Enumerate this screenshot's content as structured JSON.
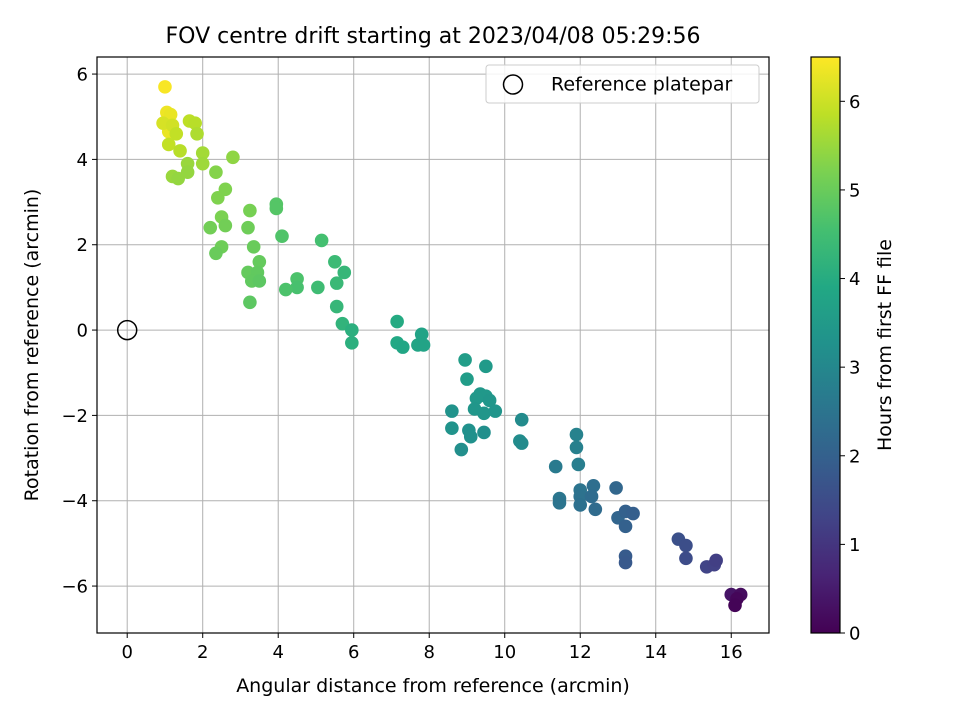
{
  "chart_data": {
    "type": "scatter",
    "title": "FOV centre drift starting at 2023/04/08 05:29:56",
    "xlabel": "Angular distance from reference (arcmin)",
    "ylabel": "Rotation from reference (arcmin)",
    "xlim": [
      -0.8,
      17.0
    ],
    "ylim": [
      -7.1,
      6.4
    ],
    "xticks": [
      0,
      2,
      4,
      6,
      8,
      10,
      12,
      14,
      16
    ],
    "yticks": [
      -6,
      -4,
      -2,
      0,
      2,
      4,
      6
    ],
    "grid": true,
    "legend": {
      "placement": "top-right",
      "entries": [
        "Reference platepar"
      ]
    },
    "reference_point": {
      "x": 0,
      "y": 0,
      "label": "Reference platepar"
    },
    "colorbar": {
      "label": "Hours from first FF file",
      "colormap": "viridis",
      "range": [
        0,
        6.5
      ],
      "ticks": [
        0,
        1,
        2,
        3,
        4,
        5,
        6
      ]
    },
    "series": [
      {
        "points": [
          [
            1.0,
            5.7,
            6.45
          ],
          [
            1.05,
            5.1,
            6.35
          ],
          [
            1.15,
            5.05,
            6.3
          ],
          [
            1.1,
            4.65,
            6.3
          ],
          [
            0.95,
            4.85,
            6.1
          ],
          [
            1.2,
            4.8,
            6.05
          ],
          [
            1.3,
            4.6,
            5.9
          ],
          [
            1.1,
            4.35,
            5.9
          ],
          [
            1.4,
            4.2,
            5.8
          ],
          [
            1.65,
            4.9,
            5.85
          ],
          [
            1.8,
            4.85,
            5.8
          ],
          [
            1.85,
            4.6,
            5.7
          ],
          [
            2.0,
            4.15,
            5.6
          ],
          [
            2.0,
            3.9,
            5.55
          ],
          [
            1.6,
            3.9,
            5.5
          ],
          [
            1.6,
            3.7,
            5.45
          ],
          [
            1.2,
            3.6,
            5.5
          ],
          [
            1.35,
            3.55,
            5.45
          ],
          [
            2.8,
            4.05,
            5.4
          ],
          [
            2.35,
            3.7,
            5.3
          ],
          [
            2.6,
            3.3,
            5.25
          ],
          [
            2.4,
            3.1,
            5.25
          ],
          [
            3.25,
            2.8,
            5.15
          ],
          [
            2.5,
            2.65,
            5.2
          ],
          [
            2.6,
            2.45,
            5.1
          ],
          [
            2.2,
            2.4,
            5.1
          ],
          [
            3.2,
            2.4,
            5.05
          ],
          [
            2.5,
            1.95,
            5.05
          ],
          [
            2.35,
            1.8,
            5.0
          ],
          [
            3.35,
            1.95,
            5.0
          ],
          [
            3.5,
            1.6,
            4.95
          ],
          [
            3.2,
            1.35,
            4.95
          ],
          [
            3.45,
            1.35,
            4.9
          ],
          [
            3.3,
            1.15,
            4.9
          ],
          [
            3.5,
            1.15,
            4.85
          ],
          [
            3.25,
            0.65,
            4.85
          ],
          [
            3.95,
            2.95,
            4.75
          ],
          [
            3.95,
            2.85,
            4.75
          ],
          [
            4.1,
            2.2,
            4.7
          ],
          [
            4.5,
            1.2,
            4.65
          ],
          [
            4.5,
            1.0,
            4.6
          ],
          [
            4.2,
            0.95,
            4.65
          ],
          [
            5.15,
            2.1,
            4.55
          ],
          [
            5.5,
            1.6,
            4.4
          ],
          [
            5.05,
            1.0,
            4.45
          ],
          [
            5.55,
            1.1,
            4.35
          ],
          [
            5.75,
            1.35,
            4.3
          ],
          [
            5.55,
            0.55,
            4.3
          ],
          [
            5.7,
            0.15,
            4.2
          ],
          [
            5.95,
            0.0,
            4.1
          ],
          [
            5.95,
            -0.3,
            4.1
          ],
          [
            7.15,
            0.2,
            3.95
          ],
          [
            7.15,
            -0.3,
            3.9
          ],
          [
            7.3,
            -0.4,
            3.85
          ],
          [
            7.7,
            -0.35,
            3.8
          ],
          [
            7.8,
            -0.1,
            3.75
          ],
          [
            7.85,
            -0.35,
            3.75
          ],
          [
            8.95,
            -0.7,
            3.6
          ],
          [
            9.0,
            -1.15,
            3.55
          ],
          [
            9.5,
            -0.85,
            3.5
          ],
          [
            9.35,
            -1.5,
            3.45
          ],
          [
            9.5,
            -1.55,
            3.45
          ],
          [
            9.25,
            -1.6,
            3.45
          ],
          [
            9.6,
            -1.65,
            3.4
          ],
          [
            9.2,
            -1.85,
            3.4
          ],
          [
            9.45,
            -1.95,
            3.4
          ],
          [
            9.75,
            -1.9,
            3.35
          ],
          [
            8.6,
            -1.9,
            3.3
          ],
          [
            8.6,
            -2.3,
            3.3
          ],
          [
            9.05,
            -2.35,
            3.25
          ],
          [
            9.1,
            -2.5,
            3.25
          ],
          [
            9.45,
            -2.4,
            3.2
          ],
          [
            8.85,
            -2.8,
            3.2
          ],
          [
            10.4,
            -2.6,
            3.15
          ],
          [
            10.45,
            -2.1,
            3.1
          ],
          [
            10.45,
            -2.65,
            3.1
          ],
          [
            11.9,
            -2.45,
            2.85
          ],
          [
            11.9,
            -2.75,
            2.8
          ],
          [
            11.95,
            -3.15,
            2.75
          ],
          [
            11.35,
            -3.2,
            2.65
          ],
          [
            11.45,
            -3.95,
            2.55
          ],
          [
            11.45,
            -4.05,
            2.5
          ],
          [
            12.0,
            -3.75,
            2.5
          ],
          [
            12.0,
            -3.9,
            2.45
          ],
          [
            12.0,
            -4.1,
            2.4
          ],
          [
            12.35,
            -3.65,
            2.35
          ],
          [
            12.3,
            -3.9,
            2.3
          ],
          [
            12.4,
            -4.2,
            2.25
          ],
          [
            12.95,
            -3.7,
            2.15
          ],
          [
            13.0,
            -4.4,
            2.1
          ],
          [
            13.2,
            -4.25,
            2.0
          ],
          [
            13.2,
            -4.6,
            2.0
          ],
          [
            13.4,
            -4.3,
            1.95
          ],
          [
            13.2,
            -5.3,
            1.85
          ],
          [
            13.2,
            -5.45,
            1.8
          ],
          [
            14.6,
            -4.9,
            1.6
          ],
          [
            14.8,
            -5.05,
            1.55
          ],
          [
            14.8,
            -5.35,
            1.5
          ],
          [
            15.35,
            -5.55,
            1.3
          ],
          [
            15.55,
            -5.5,
            1.25
          ],
          [
            15.6,
            -5.4,
            1.2
          ],
          [
            16.0,
            -6.2,
            0.35
          ],
          [
            16.25,
            -6.2,
            0.2
          ],
          [
            16.15,
            -6.3,
            0.1
          ],
          [
            16.1,
            -6.45,
            0.05
          ]
        ]
      }
    ]
  }
}
